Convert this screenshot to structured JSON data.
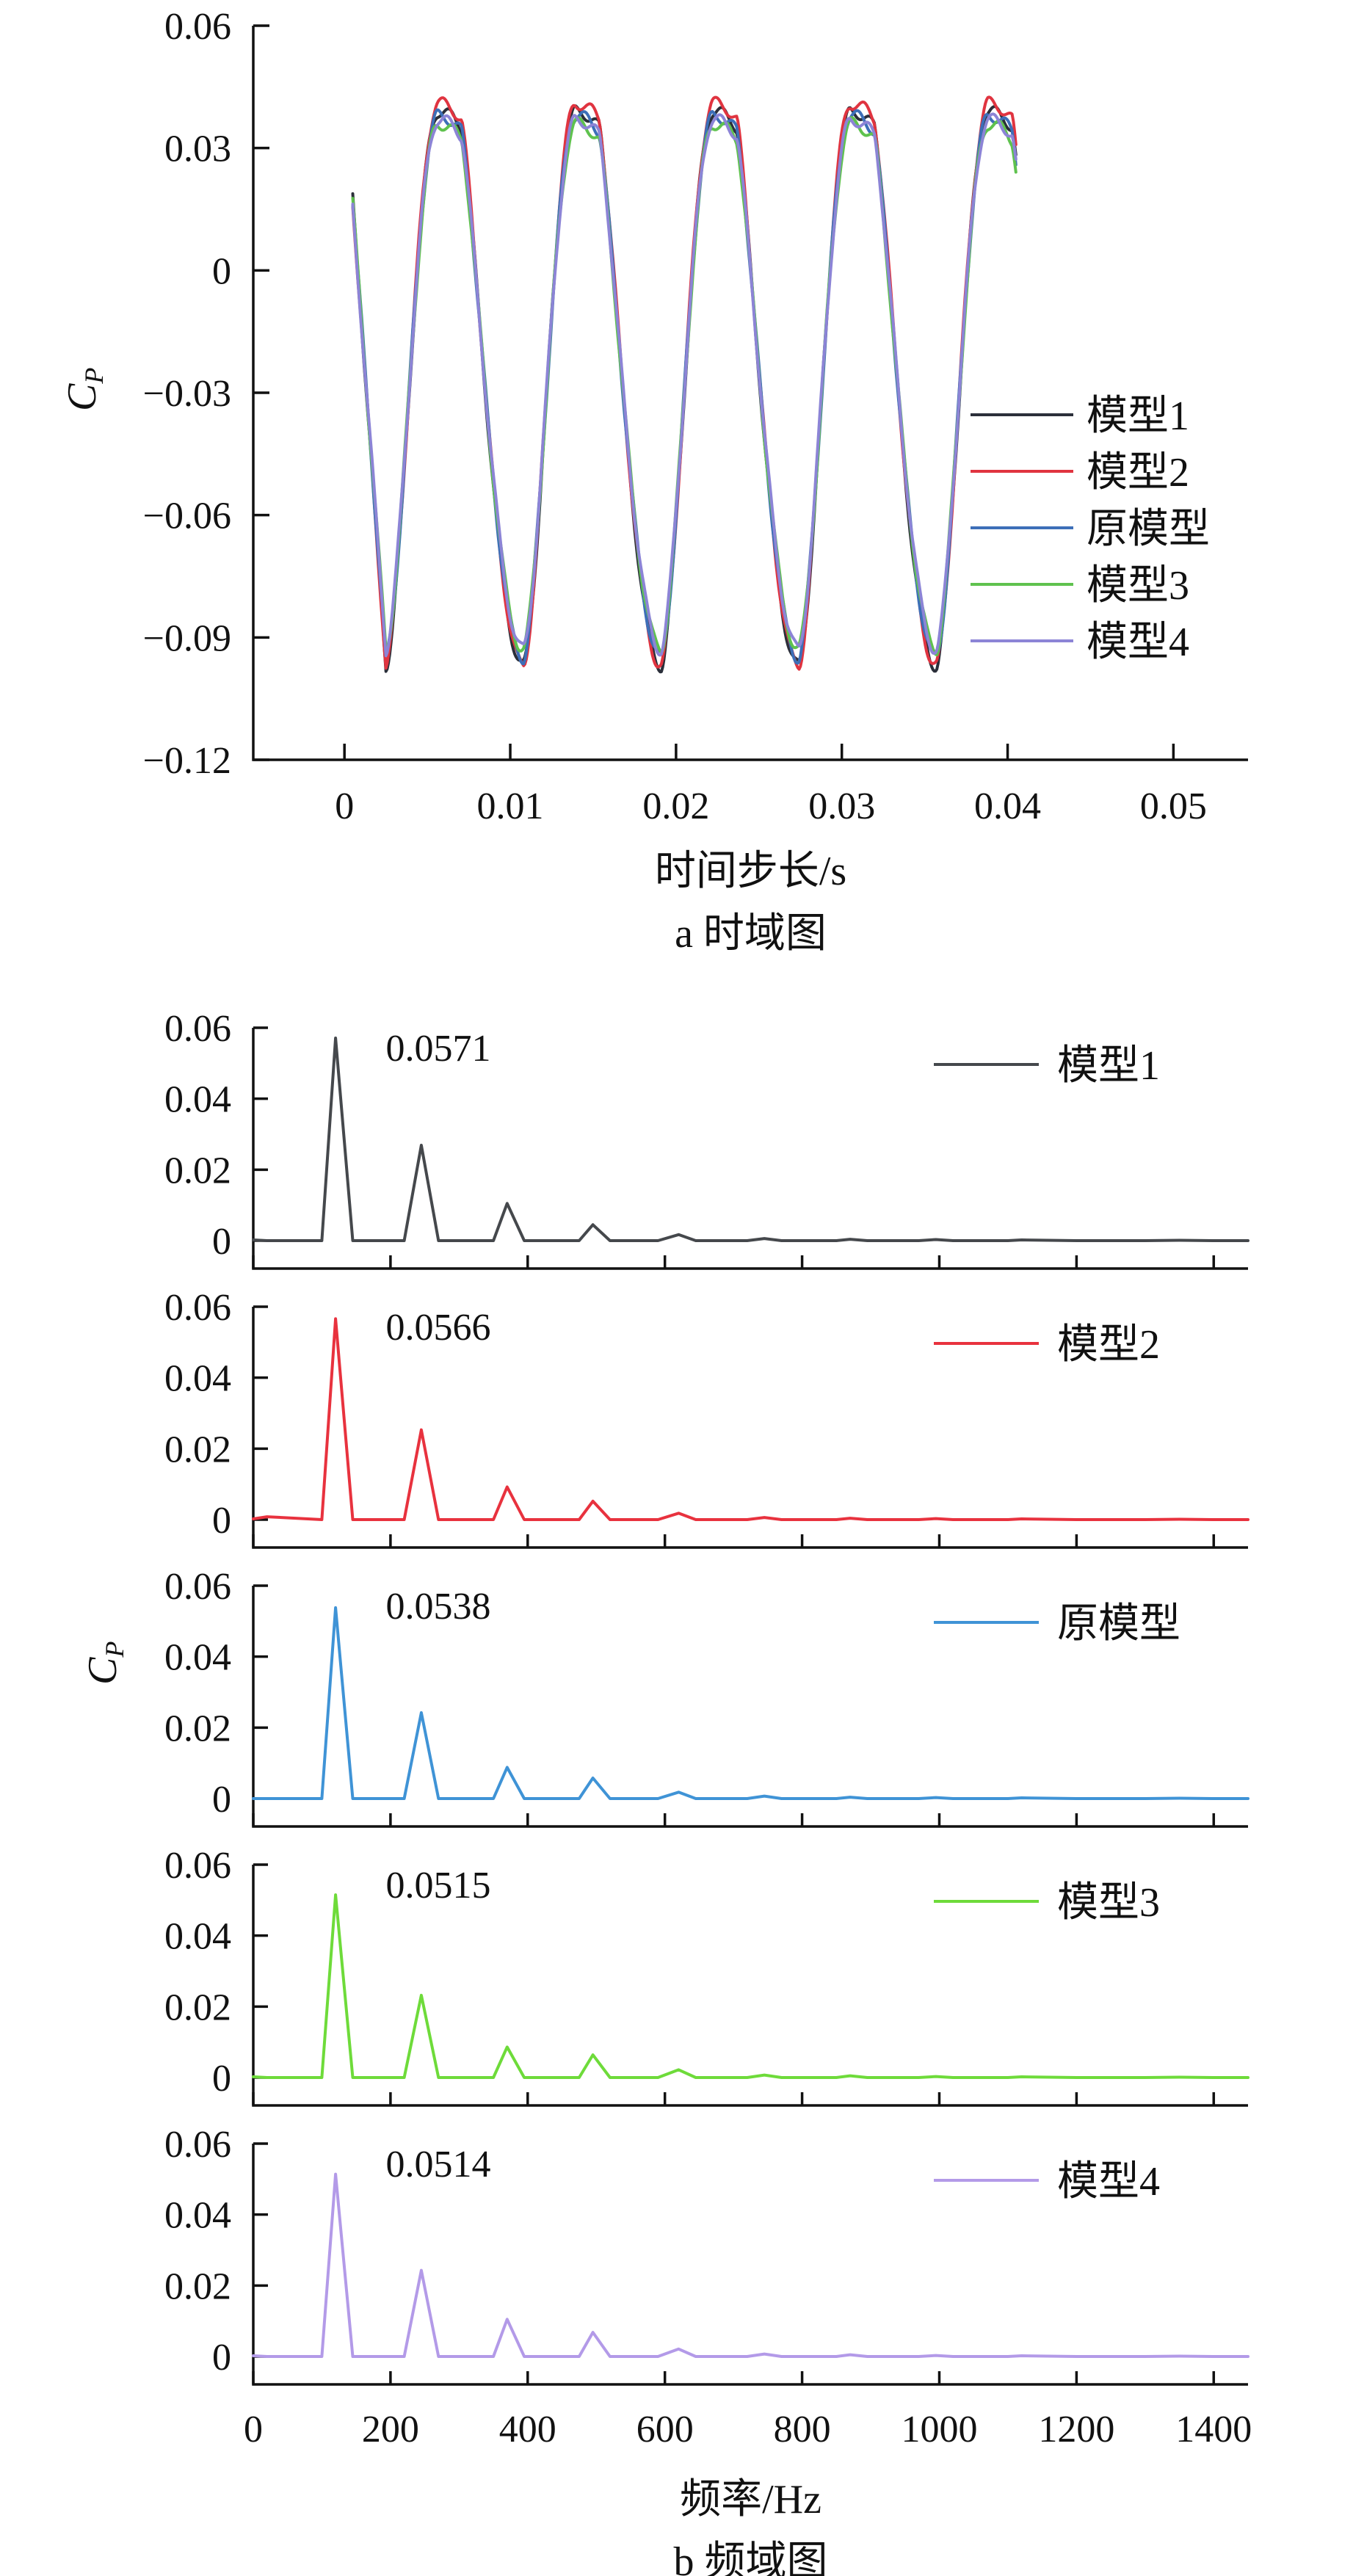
{
  "chart_data": [
    {
      "id": "time-domain",
      "type": "line",
      "caption": "a  时域图",
      "xlabel": "时间步长/s",
      "ylabel": "Cp",
      "xlim": [
        -0.0055,
        0.0545
      ],
      "ylim": [
        -0.12,
        0.06
      ],
      "xticks": [
        0,
        0.01,
        0.02,
        0.03,
        0.04,
        0.05
      ],
      "xtick_labels": [
        "0",
        "0.01",
        "0.02",
        "0.03",
        "0.04",
        "0.05"
      ],
      "yticks": [
        0.06,
        0.03,
        0,
        -0.03,
        -0.06,
        -0.09,
        -0.12
      ],
      "ytick_labels": [
        "0.06",
        "0.03",
        "0",
        "−0.03",
        "−0.06",
        "−0.09",
        "−0.12"
      ],
      "grid": false,
      "legend_position": "right-middle",
      "series": [
        {
          "name": "模型1",
          "color": "#2b2f3a",
          "period": 0.0083,
          "min": -0.097,
          "max": 0.039,
          "start": 0.0175
        },
        {
          "name": "模型2",
          "color": "#e03440",
          "period": 0.0083,
          "min": -0.097,
          "max": 0.041,
          "start": 0.0165
        },
        {
          "name": "原模型",
          "color": "#3d6fb8",
          "period": 0.0083,
          "min": -0.095,
          "max": 0.038,
          "start": 0.017
        },
        {
          "name": "模型3",
          "color": "#5fc24e",
          "period": 0.0083,
          "min": -0.093,
          "max": 0.036,
          "start": 0.0165
        },
        {
          "name": "模型4",
          "color": "#8c84d6",
          "period": 0.0083,
          "min": -0.093,
          "max": 0.037,
          "start": 0.0155
        }
      ]
    },
    {
      "id": "frequency-domain",
      "type": "line",
      "caption": "b  频域图",
      "xlabel": "频率/Hz",
      "ylabel": "Cp",
      "xlim": [
        0,
        1450
      ],
      "ylim": [
        0,
        0.06
      ],
      "xticks": [
        0,
        200,
        400,
        600,
        800,
        1000,
        1200,
        1400
      ],
      "xtick_labels": [
        "0",
        "200",
        "400",
        "600",
        "800",
        "1000",
        "1200",
        "1400"
      ],
      "yticks": [
        0.06,
        0.04,
        0.02,
        0
      ],
      "ytick_labels": [
        "0.06",
        "0.04",
        "0.02",
        "0"
      ],
      "grid": false,
      "x": [
        0,
        20,
        100,
        120,
        145,
        220,
        245,
        270,
        350,
        370,
        395,
        475,
        495,
        520,
        590,
        620,
        645,
        720,
        745,
        770,
        850,
        870,
        895,
        970,
        995,
        1020,
        1100,
        1120,
        1200,
        1250,
        1300,
        1350,
        1400,
        1450
      ],
      "panels": [
        {
          "name": "模型1",
          "color": "#45484c",
          "peak_label": "0.0571",
          "values": [
            0.0002,
            0.0,
            0.0,
            0.0571,
            0.0,
            0.0,
            0.0269,
            0.0,
            0.0,
            0.0105,
            0.0,
            0.0,
            0.0045,
            0.0,
            0.0,
            0.0017,
            0.0,
            0.0,
            0.0006,
            0.0,
            0.0,
            0.0004,
            0.0,
            0.0,
            0.0003,
            0.0,
            0.0,
            0.0002,
            0.0,
            0.0,
            0.0,
            0.0001,
            0.0,
            0.0
          ]
        },
        {
          "name": "模型2",
          "color": "#e8323e",
          "peak_label": "0.0566",
          "values": [
            0.0002,
            0.0008,
            0.0,
            0.0566,
            0.0,
            0.0,
            0.0253,
            0.0,
            0.0,
            0.0092,
            0.0,
            0.0,
            0.0052,
            0.0,
            0.0,
            0.0018,
            0.0,
            0.0,
            0.0006,
            0.0,
            0.0,
            0.0004,
            0.0,
            0.0,
            0.0003,
            0.0,
            0.0,
            0.0002,
            0.0,
            0.0,
            0.0,
            0.0001,
            0.0,
            0.0
          ]
        },
        {
          "name": "原模型",
          "color": "#3f93d6",
          "peak_label": "0.0538",
          "values": [
            0.0,
            0.0,
            0.0,
            0.0538,
            0.0,
            0.0,
            0.0242,
            0.0,
            0.0,
            0.0088,
            0.0,
            0.0,
            0.0058,
            0.0,
            0.0,
            0.0018,
            0.0,
            0.0,
            0.0007,
            0.0,
            0.0,
            0.0004,
            0.0,
            0.0,
            0.0003,
            0.0,
            0.0,
            0.0002,
            0.0,
            0.0,
            0.0,
            0.0001,
            0.0,
            0.0
          ]
        },
        {
          "name": "模型3",
          "color": "#6edb3a",
          "peak_label": "0.0515",
          "values": [
            0.0002,
            0.0,
            0.0,
            0.0515,
            0.0,
            0.0,
            0.0232,
            0.0,
            0.0,
            0.0086,
            0.0,
            0.0,
            0.0064,
            0.0,
            0.0,
            0.0022,
            0.0,
            0.0,
            0.0007,
            0.0,
            0.0,
            0.0005,
            0.0,
            0.0,
            0.0003,
            0.0,
            0.0,
            0.0002,
            0.0,
            0.0,
            0.0,
            0.0001,
            0.0,
            0.0
          ]
        },
        {
          "name": "模型4",
          "color": "#b39ae8",
          "peak_label": "0.0514",
          "values": [
            0.0002,
            0.0,
            0.0,
            0.0514,
            0.0,
            0.0,
            0.0243,
            0.0,
            0.0,
            0.0105,
            0.0,
            0.0,
            0.0068,
            0.0,
            0.0,
            0.0021,
            0.0,
            0.0,
            0.0007,
            0.0,
            0.0,
            0.0005,
            0.0,
            0.0,
            0.0003,
            0.0,
            0.0,
            0.0002,
            0.0,
            0.0,
            0.0,
            0.0001,
            0.0,
            0.0
          ]
        }
      ]
    }
  ]
}
